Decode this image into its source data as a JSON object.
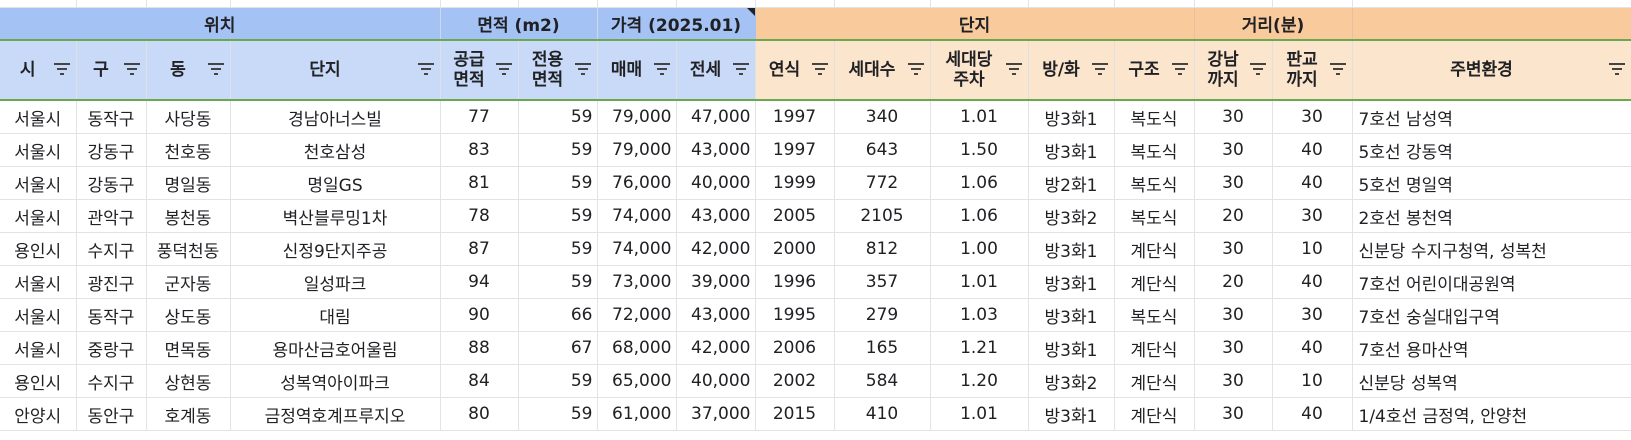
{
  "group_headers": {
    "location": "위치",
    "area": "면적 (m2)",
    "price": "가격 (2025.01)",
    "complex": "단지",
    "distance": "거리(분)"
  },
  "columns": [
    {
      "label1": "시",
      "label2": "",
      "group": "blue"
    },
    {
      "label1": "구",
      "label2": "",
      "group": "blue"
    },
    {
      "label1": "동",
      "label2": "",
      "group": "blue"
    },
    {
      "label1": "단지",
      "label2": "",
      "group": "blue"
    },
    {
      "label1": "공급",
      "label2": "면적",
      "group": "blue"
    },
    {
      "label1": "전용",
      "label2": "면적",
      "group": "blue"
    },
    {
      "label1": "매매",
      "label2": "",
      "group": "blue"
    },
    {
      "label1": "전세",
      "label2": "",
      "group": "blue"
    },
    {
      "label1": "연식",
      "label2": "",
      "group": "orange"
    },
    {
      "label1": "세대수",
      "label2": "",
      "group": "orange"
    },
    {
      "label1": "세대당",
      "label2": "주차",
      "group": "orange"
    },
    {
      "label1": "방/화",
      "label2": "",
      "group": "orange"
    },
    {
      "label1": "구조",
      "label2": "",
      "group": "orange"
    },
    {
      "label1": "강남",
      "label2": "까지",
      "group": "orange"
    },
    {
      "label1": "판교",
      "label2": "까지",
      "group": "orange"
    },
    {
      "label1": "주변환경",
      "label2": "",
      "group": "orange"
    }
  ],
  "rows": [
    [
      "서울시",
      "동작구",
      "사당동",
      "경남아너스빌",
      "77",
      "59",
      "79,000",
      "47,000",
      "1997",
      "340",
      "1.01",
      "방3화1",
      "복도식",
      "30",
      "30",
      "7호선 남성역"
    ],
    [
      "서울시",
      "강동구",
      "천호동",
      "천호삼성",
      "83",
      "59",
      "79,000",
      "43,000",
      "1997",
      "643",
      "1.50",
      "방3화1",
      "복도식",
      "30",
      "40",
      "5호선 강동역"
    ],
    [
      "서울시",
      "강동구",
      "명일동",
      "명일GS",
      "81",
      "59",
      "76,000",
      "40,000",
      "1999",
      "772",
      "1.06",
      "방2화1",
      "복도식",
      "30",
      "40",
      "5호선 명일역"
    ],
    [
      "서울시",
      "관악구",
      "봉천동",
      "벽산블루밍1차",
      "78",
      "59",
      "74,000",
      "43,000",
      "2005",
      "2105",
      "1.06",
      "방3화2",
      "복도식",
      "20",
      "30",
      "2호선 봉천역"
    ],
    [
      "용인시",
      "수지구",
      "풍덕천동",
      "신정9단지주공",
      "87",
      "59",
      "74,000",
      "42,000",
      "2000",
      "812",
      "1.00",
      "방3화1",
      "계단식",
      "30",
      "10",
      "신분당 수지구청역, 성복천"
    ],
    [
      "서울시",
      "광진구",
      "군자동",
      "일성파크",
      "94",
      "59",
      "73,000",
      "39,000",
      "1996",
      "357",
      "1.01",
      "방3화1",
      "계단식",
      "20",
      "40",
      "7호선 어린이대공원역"
    ],
    [
      "서울시",
      "동작구",
      "상도동",
      "대림",
      "90",
      "66",
      "72,000",
      "43,000",
      "1995",
      "279",
      "1.03",
      "방3화1",
      "복도식",
      "30",
      "30",
      "7호선 숭실대입구역"
    ],
    [
      "서울시",
      "중랑구",
      "면목동",
      "용마산금호어울림",
      "88",
      "67",
      "68,000",
      "42,000",
      "2006",
      "165",
      "1.21",
      "방3화1",
      "계단식",
      "30",
      "40",
      "7호선 용마산역"
    ],
    [
      "용인시",
      "수지구",
      "상현동",
      "성복역아이파크",
      "84",
      "59",
      "65,000",
      "40,000",
      "2002",
      "584",
      "1.20",
      "방3화2",
      "계단식",
      "30",
      "10",
      "신분당 성복역"
    ],
    [
      "안양시",
      "동안구",
      "호계동",
      "금정역호계프루지오",
      "80",
      "59",
      "61,000",
      "37,000",
      "2015",
      "410",
      "1.01",
      "방3화1",
      "계단식",
      "30",
      "40",
      "1/4호선 금정역, 안양천"
    ]
  ],
  "colors": {
    "group_blue": "#a4c2f4",
    "header_blue": "#c9daf8",
    "group_orange": "#f9cb9c",
    "header_orange": "#fce5cd",
    "header_border_green": "#6aa84f"
  },
  "icons": {
    "filter": "filter-icon"
  }
}
